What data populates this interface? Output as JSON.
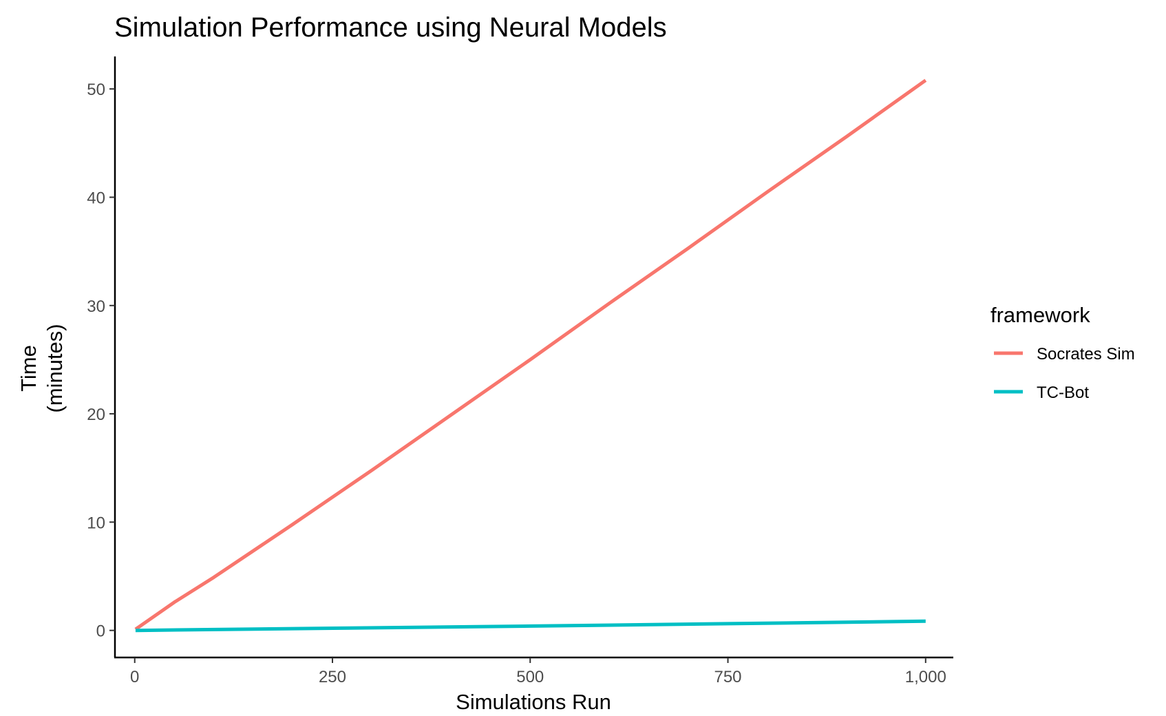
{
  "chart_data": {
    "type": "line",
    "title": "Simulation Performance using Neural Models",
    "xlabel": "Simulations Run",
    "ylabel_lines": [
      "Time",
      "(minutes)"
    ],
    "x_ticks": [
      0,
      250,
      500,
      750,
      1000
    ],
    "x_tick_labels": [
      "0",
      "250",
      "500",
      "750",
      "1,000"
    ],
    "y_ticks": [
      0,
      10,
      20,
      30,
      40,
      50
    ],
    "y_tick_labels": [
      "0",
      "10",
      "20",
      "30",
      "40",
      "50"
    ],
    "xlim": [
      -25,
      1035
    ],
    "ylim": [
      -2.5,
      53
    ],
    "grid": false,
    "legend": {
      "title": "framework",
      "placement": "right"
    },
    "series": [
      {
        "name": "Socrates Sim",
        "color": "#F8766D",
        "x": [
          1,
          50,
          100,
          200,
          300,
          400,
          500,
          600,
          700,
          800,
          900,
          1000
        ],
        "y": [
          0.1,
          2.6,
          4.9,
          9.8,
          14.8,
          19.9,
          25.0,
          30.2,
          35.3,
          40.5,
          45.6,
          50.8
        ]
      },
      {
        "name": "TC-Bot",
        "color": "#00BFC4",
        "x": [
          1,
          250,
          500,
          750,
          1000
        ],
        "y": [
          0.0,
          0.2,
          0.4,
          0.62,
          0.85
        ]
      }
    ]
  }
}
